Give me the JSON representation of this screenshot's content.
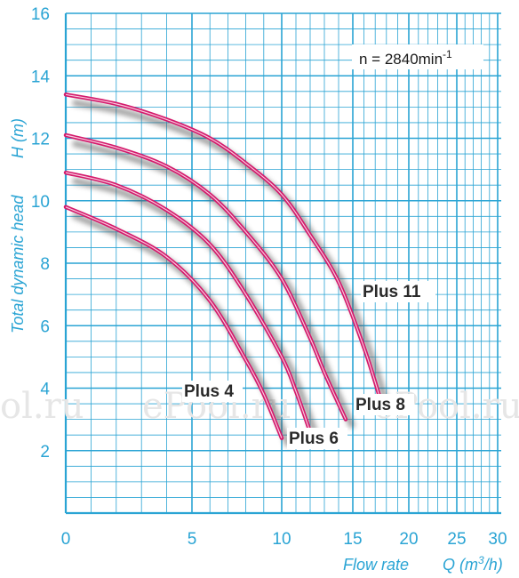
{
  "chart_data": {
    "type": "line",
    "title": "",
    "xlabel": "Flow rate",
    "ylabel": "Total dynamic head",
    "ylabel_symbol": "H (m)",
    "xlabel_symbol": "Q (m",
    "xlabel_symbol_exp": "3",
    "xlabel_symbol_end": "/h)",
    "annotation": "n = 2840min",
    "annotation_exp": "-1",
    "x_ticks": [
      0,
      5,
      10,
      15,
      20,
      25,
      30
    ],
    "y_ticks": [
      2,
      4,
      6,
      8,
      10,
      12,
      14,
      16
    ],
    "xlim": [
      0,
      30
    ],
    "ylim": [
      0,
      16
    ],
    "grid": true,
    "series": [
      {
        "name": "Plus 4",
        "x": [
          0,
          2,
          4,
          6,
          8,
          9,
          10
        ],
        "y": [
          9.8,
          9.1,
          8.2,
          6.8,
          4.9,
          3.8,
          2.4
        ]
      },
      {
        "name": "Plus 6",
        "x": [
          0,
          2,
          4,
          6,
          8,
          10,
          11,
          12
        ],
        "y": [
          10.9,
          10.5,
          9.7,
          8.6,
          7.0,
          5.0,
          3.9,
          2.6
        ]
      },
      {
        "name": "Plus 8",
        "x": [
          0,
          2,
          4,
          6,
          8,
          10,
          12,
          13,
          14.5
        ],
        "y": [
          12.1,
          11.7,
          11.1,
          10.2,
          9.0,
          7.5,
          5.6,
          4.5,
          3.0
        ]
      },
      {
        "name": "Plus 11",
        "x": [
          0,
          2,
          4,
          6,
          8,
          10,
          12,
          14,
          16,
          17.5
        ],
        "y": [
          13.4,
          13.1,
          12.6,
          12.0,
          11.2,
          10.2,
          8.9,
          7.4,
          5.3,
          3.6
        ]
      }
    ]
  },
  "watermark": "ePool.ru",
  "watermark_partial": "ol.ru",
  "footer_watermark": "epool.ru"
}
